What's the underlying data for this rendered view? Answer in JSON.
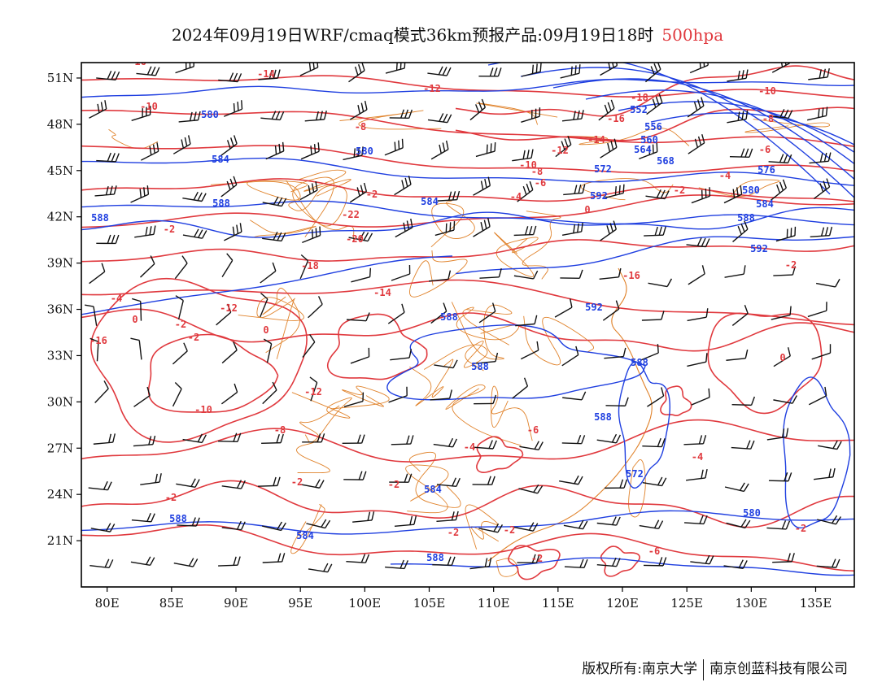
{
  "title": {
    "text": "2024年09月19日WRF/cmaq模式36km预报产品:09月19日18时",
    "level": "500hpa"
  },
  "map": {
    "projection": "lat-lon",
    "lon_range": [
      78,
      138
    ],
    "lat_range": [
      18,
      52
    ],
    "lat_ticks": [
      "51N",
      "48N",
      "45N",
      "42N",
      "39N",
      "36N",
      "33N",
      "30N",
      "27N",
      "24N",
      "21N"
    ],
    "lon_ticks": [
      "80E",
      "85E",
      "90E",
      "95E",
      "100E",
      "105E",
      "110E",
      "115E",
      "120E",
      "125E",
      "130E",
      "135E"
    ],
    "colors": {
      "geopotential": "#1f3fe0",
      "temperature": "#e0393e",
      "boundaries": "#e0822a",
      "wind": "#111111"
    },
    "geopotential_labels": [
      "580",
      "580",
      "584",
      "588",
      "584",
      "588",
      "552",
      "556",
      "560",
      "564",
      "568",
      "572",
      "576",
      "580",
      "584",
      "588",
      "592",
      "592",
      "592",
      "588",
      "588",
      "588",
      "588",
      "584",
      "572",
      "580",
      "584",
      "588",
      "588"
    ],
    "temperature_labels": [
      "-16",
      "-14",
      "-12",
      "-10",
      "-8",
      "-18",
      "-16",
      "-14",
      "-12",
      "-10",
      "-8",
      "-6",
      "-4",
      "-2",
      "-22",
      "-20",
      "-18",
      "-16",
      "-14",
      "-12",
      "-10",
      "-8",
      "-6",
      "-4",
      "-2",
      "0",
      "-2",
      "-4",
      "0",
      "-2",
      "-2",
      "0",
      "-16",
      "-12",
      "-10",
      "-8",
      "-6",
      "-4",
      "-2",
      "-2",
      "-2",
      "-2",
      "-2",
      "-2",
      "-6",
      "-4",
      "0",
      "-2",
      "-2"
    ]
  },
  "credit": {
    "owner_prefix": "版权所有:",
    "owner": "南京大学",
    "company": "南京创蓝科技有限公司"
  }
}
